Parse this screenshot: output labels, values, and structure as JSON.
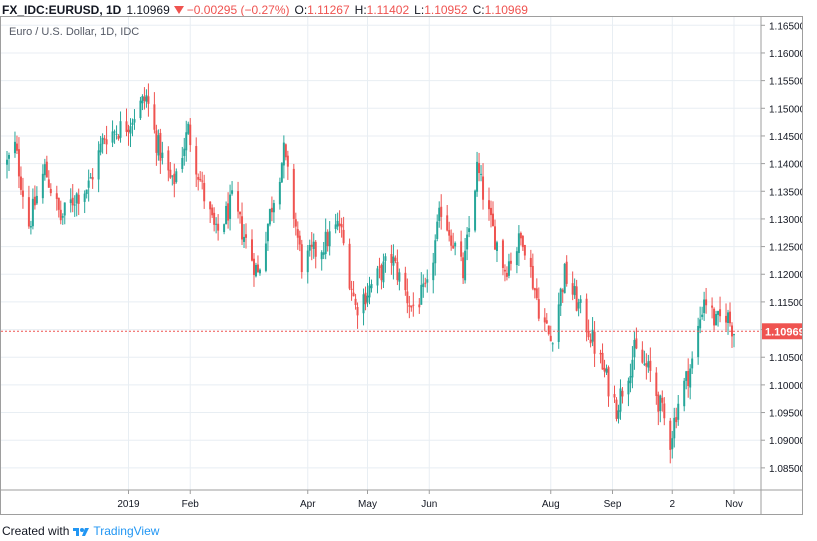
{
  "header": {
    "symbol": "FX_IDC:EURUSD, 1D",
    "last": "1.10969",
    "change": "−0.00295 (−0.27%)",
    "o_label": "O:",
    "o_value": "1.11267",
    "h_label": "H:",
    "h_value": "1.11402",
    "l_label": "L:",
    "l_value": "1.10952",
    "c_label": "C:",
    "c_value": "1.10969",
    "arrow_icon": "triangle-down-icon"
  },
  "footer": {
    "created_with": "Created with",
    "brand": "TradingView",
    "logo_icon": "tradingview-logo-icon"
  },
  "colors": {
    "up": "#26a69a",
    "down": "#ef5350",
    "grid": "#e8eef3",
    "axis_text": "#131722",
    "price_line": "#ef5350"
  },
  "chart_data": {
    "type": "candlestick",
    "title": "Euro / U.S. Dollar, 1D, IDC",
    "ylim": [
      1.081,
      1.1665
    ],
    "y_ticks": [
      "1.08500",
      "1.09000",
      "1.09500",
      "1.10000",
      "1.10500",
      "1.11000",
      "1.11500",
      "1.12000",
      "1.12500",
      "1.13000",
      "1.13500",
      "1.14000",
      "1.14500",
      "1.15000",
      "1.15500",
      "1.16000",
      "1.16500"
    ],
    "x_ticks": [
      {
        "label": "2019",
        "date": "2019-01-01"
      },
      {
        "label": "Feb",
        "date": "2019-02-01"
      },
      {
        "label": "Apr",
        "date": "2019-04-01"
      },
      {
        "label": "May",
        "date": "2019-05-01"
      },
      {
        "label": "Jun",
        "date": "2019-06-01"
      },
      {
        "label": "Aug",
        "date": "2019-08-01"
      },
      {
        "label": "Sep",
        "date": "2019-09-01"
      },
      {
        "label": "2",
        "date": "2019-10-01"
      },
      {
        "label": "Nov",
        "date": "2019-11-01"
      }
    ],
    "date_range": [
      "2018-11-01",
      "2019-11-01"
    ],
    "grid": true,
    "last_price": {
      "value": 1.10969,
      "label": "1.10969"
    },
    "anchors": [
      {
        "date": "2018-11-01",
        "close": 1.14
      },
      {
        "date": "2018-11-05",
        "close": 1.143
      },
      {
        "date": "2018-11-12",
        "close": 1.129
      },
      {
        "date": "2018-11-20",
        "close": 1.139
      },
      {
        "date": "2018-11-28",
        "close": 1.13
      },
      {
        "date": "2018-12-05",
        "close": 1.134
      },
      {
        "date": "2018-12-12",
        "close": 1.136
      },
      {
        "date": "2018-12-20",
        "close": 1.145
      },
      {
        "date": "2018-12-31",
        "close": 1.147
      },
      {
        "date": "2019-01-10",
        "close": 1.152
      },
      {
        "date": "2019-01-15",
        "close": 1.144
      },
      {
        "date": "2019-01-23",
        "close": 1.136
      },
      {
        "date": "2019-01-31",
        "close": 1.146
      },
      {
        "date": "2019-02-08",
        "close": 1.134
      },
      {
        "date": "2019-02-14",
        "close": 1.127
      },
      {
        "date": "2019-02-22",
        "close": 1.133
      },
      {
        "date": "2019-03-07",
        "close": 1.12
      },
      {
        "date": "2019-03-13",
        "close": 1.131
      },
      {
        "date": "2019-03-20",
        "close": 1.142
      },
      {
        "date": "2019-03-29",
        "close": 1.122
      },
      {
        "date": "2019-04-08",
        "close": 1.125
      },
      {
        "date": "2019-04-17",
        "close": 1.129
      },
      {
        "date": "2019-04-25",
        "close": 1.114
      },
      {
        "date": "2019-05-03",
        "close": 1.118
      },
      {
        "date": "2019-05-13",
        "close": 1.123
      },
      {
        "date": "2019-05-23",
        "close": 1.114
      },
      {
        "date": "2019-05-31",
        "close": 1.117
      },
      {
        "date": "2019-06-07",
        "close": 1.132
      },
      {
        "date": "2019-06-13",
        "close": 1.126
      },
      {
        "date": "2019-06-18",
        "close": 1.12
      },
      {
        "date": "2019-06-25",
        "close": 1.139
      },
      {
        "date": "2019-07-02",
        "close": 1.129
      },
      {
        "date": "2019-07-09",
        "close": 1.121
      },
      {
        "date": "2019-07-18",
        "close": 1.127
      },
      {
        "date": "2019-07-26",
        "close": 1.114
      },
      {
        "date": "2019-08-01",
        "close": 1.108
      },
      {
        "date": "2019-08-08",
        "close": 1.12
      },
      {
        "date": "2019-08-20",
        "close": 1.11
      },
      {
        "date": "2019-08-30",
        "close": 1.1
      },
      {
        "date": "2019-09-03",
        "close": 1.096
      },
      {
        "date": "2019-09-12",
        "close": 1.106
      },
      {
        "date": "2019-09-20",
        "close": 1.102
      },
      {
        "date": "2019-09-30",
        "close": 1.09
      },
      {
        "date": "2019-10-04",
        "close": 1.097
      },
      {
        "date": "2019-10-11",
        "close": 1.104
      },
      {
        "date": "2019-10-17",
        "close": 1.116
      },
      {
        "date": "2019-10-23",
        "close": 1.111
      },
      {
        "date": "2019-10-28",
        "close": 1.113
      },
      {
        "date": "2019-11-01",
        "close": 1.1097
      }
    ]
  }
}
